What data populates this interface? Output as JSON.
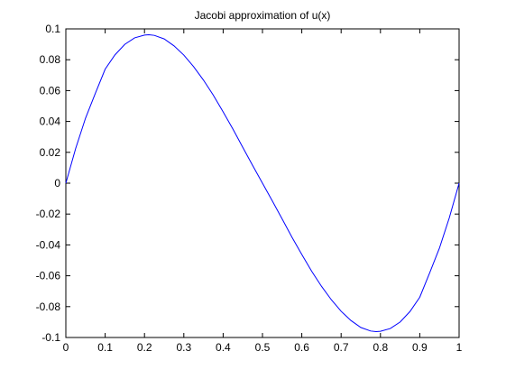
{
  "chart_data": {
    "type": "line",
    "title": "Jacobi approximation of u(x)",
    "xlabel": "",
    "ylabel": "",
    "xlim": [
      0,
      1
    ],
    "ylim": [
      -0.1,
      0.1
    ],
    "x_ticks": [
      0,
      0.1,
      0.2,
      0.3,
      0.4,
      0.5,
      0.6,
      0.7,
      0.8,
      0.9,
      1
    ],
    "x_tick_labels": [
      "0",
      "0.1",
      "0.2",
      "0.3",
      "0.4",
      "0.5",
      "0.6",
      "0.7",
      "0.8",
      "0.9",
      "1"
    ],
    "y_ticks": [
      0.1,
      0.08,
      0.06,
      0.04,
      0.02,
      0,
      -0.02,
      -0.04,
      -0.06,
      -0.08,
      -0.1
    ],
    "y_tick_labels": [
      "0.1",
      "0.08",
      "0.06",
      "0.04",
      "0.02",
      "0",
      "-0.02",
      "-0.04",
      "-0.06",
      "-0.08",
      "-0.1"
    ],
    "grid": false,
    "legend": "none",
    "series": [
      {
        "color": "#0000ff",
        "x": [
          0,
          0.025,
          0.05,
          0.075,
          0.1,
          0.125,
          0.15,
          0.175,
          0.2,
          0.211,
          0.225,
          0.25,
          0.275,
          0.3,
          0.325,
          0.35,
          0.375,
          0.4,
          0.425,
          0.45,
          0.475,
          0.5,
          0.525,
          0.55,
          0.575,
          0.6,
          0.625,
          0.65,
          0.675,
          0.7,
          0.725,
          0.75,
          0.775,
          0.789,
          0.8,
          0.825,
          0.85,
          0.875,
          0.9,
          0.925,
          0.95,
          0.975,
          1
        ],
        "y": [
          0,
          0.0225,
          0.0421,
          0.0582,
          0.0739,
          0.0832,
          0.09,
          0.0942,
          0.096,
          0.0962,
          0.0958,
          0.0935,
          0.089,
          0.083,
          0.0755,
          0.0668,
          0.057,
          0.0462,
          0.035,
          0.0232,
          0.0115,
          0,
          -0.0115,
          -0.0232,
          -0.035,
          -0.0462,
          -0.057,
          -0.0668,
          -0.0755,
          -0.083,
          -0.089,
          -0.0935,
          -0.0958,
          -0.0962,
          -0.096,
          -0.0942,
          -0.09,
          -0.0832,
          -0.0739,
          -0.0582,
          -0.0421,
          -0.0225,
          0
        ]
      }
    ]
  }
}
